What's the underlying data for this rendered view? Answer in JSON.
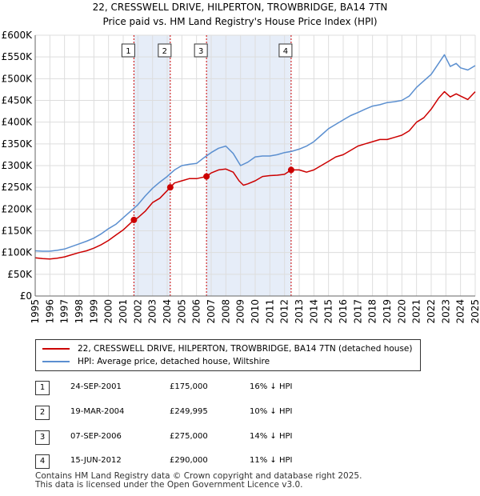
{
  "title_line1": "22, CRESSWELL DRIVE, HILPERTON, TROWBRIDGE, BA14 7TN",
  "title_line2": "Price paid vs. HM Land Registry's House Price Index (HPI)",
  "colors": {
    "property": "#cc0000",
    "hpi": "#5b8fd0",
    "shade": "#e6edf8",
    "grid": "#dddddd",
    "vline": "#cc0000"
  },
  "chart_data": {
    "type": "line",
    "title": "Price paid vs. HM Land Registry's House Price Index (HPI)",
    "xlabel": "",
    "ylabel": "",
    "xlim": [
      1995,
      2025
    ],
    "ylim": [
      0,
      600000
    ],
    "y_ticks": [
      0,
      50000,
      100000,
      150000,
      200000,
      250000,
      300000,
      350000,
      400000,
      450000,
      500000,
      550000,
      600000
    ],
    "y_tick_labels": [
      "£0",
      "£50K",
      "£100K",
      "£150K",
      "£200K",
      "£250K",
      "£300K",
      "£350K",
      "£400K",
      "£450K",
      "£500K",
      "£550K",
      "£600K"
    ],
    "x_ticks": [
      1995,
      1996,
      1997,
      1998,
      1999,
      2000,
      2001,
      2002,
      2003,
      2004,
      2005,
      2006,
      2007,
      2008,
      2009,
      2010,
      2011,
      2012,
      2013,
      2014,
      2015,
      2016,
      2017,
      2018,
      2019,
      2020,
      2021,
      2022,
      2023,
      2024,
      2025
    ],
    "x_tick_labels": [
      "1995",
      "1996",
      "1997",
      "1998",
      "1999",
      "2000",
      "2001",
      "2002",
      "2003",
      "2004",
      "2005",
      "2006",
      "2007",
      "2008",
      "2009",
      "2010",
      "2011",
      "2012",
      "2013",
      "2014",
      "2015",
      "2016",
      "2017",
      "2018",
      "2019",
      "2020",
      "2021",
      "2022",
      "2023",
      "2024",
      "2025"
    ],
    "grid": true,
    "shaded_periods": [
      [
        2001.73,
        2004.21
      ],
      [
        2006.68,
        2012.45
      ]
    ],
    "series": [
      {
        "name": "22, CRESSWELL DRIVE, HILPERTON, TROWBRIDGE, BA14 7TN (detached house)",
        "color": "#cc0000",
        "x": [
          1995,
          1995.5,
          1996,
          1996.5,
          1997,
          1997.5,
          1998,
          1998.5,
          1999,
          1999.5,
          2000,
          2000.5,
          2001,
          2001.73,
          2002,
          2002.5,
          2003,
          2003.5,
          2004.21,
          2004.5,
          2005,
          2005.5,
          2006,
          2006.68,
          2007,
          2007.5,
          2008,
          2008.5,
          2008.9,
          2009.2,
          2009.5,
          2010,
          2010.5,
          2011,
          2011.5,
          2012,
          2012.45,
          2013,
          2013.5,
          2014,
          2014.5,
          2015,
          2015.5,
          2016,
          2016.5,
          2017,
          2017.5,
          2018,
          2018.5,
          2019,
          2019.5,
          2020,
          2020.5,
          2021,
          2021.5,
          2022,
          2022.5,
          2022.9,
          2023.3,
          2023.7,
          2024,
          2024.5,
          2025
        ],
        "y": [
          88000,
          86000,
          85000,
          87000,
          90000,
          95000,
          100000,
          104000,
          110000,
          118000,
          128000,
          140000,
          152000,
          175000,
          180000,
          195000,
          215000,
          225000,
          249995,
          260000,
          265000,
          270000,
          270000,
          275000,
          283000,
          290000,
          292000,
          285000,
          265000,
          255000,
          258000,
          265000,
          275000,
          277000,
          278000,
          280000,
          290000,
          290000,
          285000,
          290000,
          300000,
          310000,
          320000,
          325000,
          335000,
          345000,
          350000,
          355000,
          360000,
          360000,
          365000,
          370000,
          380000,
          400000,
          410000,
          430000,
          455000,
          470000,
          458000,
          465000,
          460000,
          452000,
          470000
        ]
      },
      {
        "name": "HPI: Average price, detached house, Wiltshire",
        "color": "#5b8fd0",
        "x": [
          1995,
          1995.5,
          1996,
          1996.5,
          1997,
          1997.5,
          1998,
          1998.5,
          1999,
          1999.5,
          2000,
          2000.5,
          2001,
          2001.5,
          2002,
          2002.5,
          2003,
          2003.5,
          2004,
          2004.5,
          2005,
          2005.5,
          2006,
          2006.5,
          2007,
          2007.5,
          2008,
          2008.5,
          2009,
          2009.5,
          2010,
          2010.5,
          2011,
          2011.5,
          2012,
          2012.5,
          2013,
          2013.5,
          2014,
          2014.5,
          2015,
          2015.5,
          2016,
          2016.5,
          2017,
          2017.5,
          2018,
          2018.5,
          2019,
          2019.5,
          2020,
          2020.5,
          2021,
          2021.5,
          2022,
          2022.5,
          2022.9,
          2023.3,
          2023.7,
          2024,
          2024.5,
          2025
        ],
        "y": [
          104000,
          103000,
          103000,
          105000,
          108000,
          114000,
          120000,
          126000,
          133000,
          143000,
          155000,
          165000,
          180000,
          195000,
          210000,
          230000,
          248000,
          262000,
          275000,
          290000,
          300000,
          303000,
          305000,
          318000,
          330000,
          340000,
          345000,
          328000,
          300000,
          308000,
          320000,
          322000,
          322000,
          325000,
          330000,
          333000,
          338000,
          345000,
          355000,
          370000,
          385000,
          395000,
          405000,
          415000,
          422000,
          430000,
          437000,
          440000,
          445000,
          447000,
          450000,
          460000,
          480000,
          495000,
          510000,
          535000,
          555000,
          528000,
          535000,
          525000,
          520000,
          530000
        ]
      }
    ],
    "annotations": [
      {
        "label": "1",
        "x": 2001.73,
        "y": 175000
      },
      {
        "label": "2",
        "x": 2004.21,
        "y": 249995
      },
      {
        "label": "3",
        "x": 2006.68,
        "y": 275000
      },
      {
        "label": "4",
        "x": 2012.45,
        "y": 290000
      }
    ]
  },
  "legend": {
    "property": "22, CRESSWELL DRIVE, HILPERTON, TROWBRIDGE, BA14 7TN (detached house)",
    "hpi": "HPI: Average price, detached house, Wiltshire"
  },
  "sales": [
    {
      "num": "1",
      "date": "24-SEP-2001",
      "price": "£175,000",
      "hpi": "16% ↓ HPI"
    },
    {
      "num": "2",
      "date": "19-MAR-2004",
      "price": "£249,995",
      "hpi": "10% ↓ HPI"
    },
    {
      "num": "3",
      "date": "07-SEP-2006",
      "price": "£275,000",
      "hpi": "14% ↓ HPI"
    },
    {
      "num": "4",
      "date": "15-JUN-2012",
      "price": "£290,000",
      "hpi": "11% ↓ HPI"
    }
  ],
  "footer": {
    "line1": "Contains HM Land Registry data © Crown copyright and database right 2025.",
    "line2": "This data is licensed under the Open Government Licence v3.0."
  }
}
